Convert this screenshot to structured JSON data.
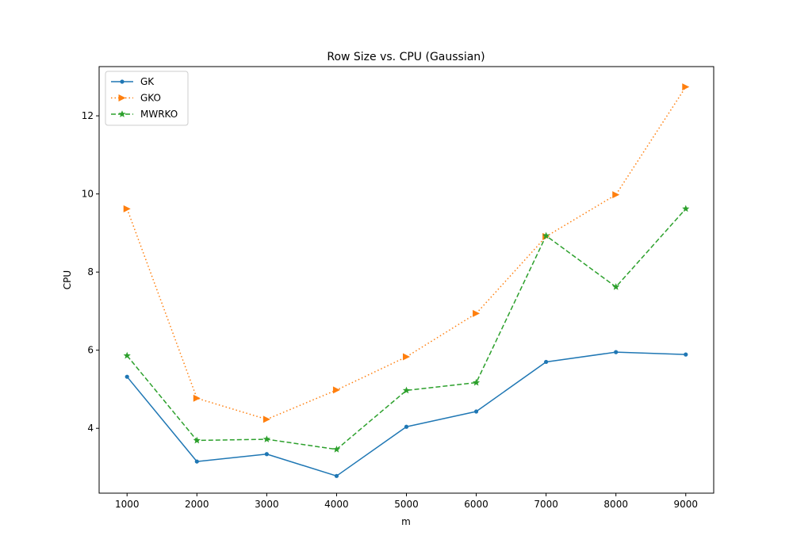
{
  "chart_data": {
    "type": "line",
    "title": "Row Size vs. CPU (Gaussian)",
    "xlabel": "m",
    "ylabel": "CPU",
    "x": [
      1000,
      2000,
      3000,
      4000,
      5000,
      6000,
      7000,
      8000,
      9000
    ],
    "x_ticks": [
      "1000",
      "2000",
      "3000",
      "4000",
      "5000",
      "6000",
      "7000",
      "8000",
      "9000"
    ],
    "y_ticks": [
      "4",
      "6",
      "8",
      "10",
      "12"
    ],
    "y_tick_values": [
      4,
      6,
      8,
      10,
      12
    ],
    "xlim": [
      600,
      9400
    ],
    "ylim": [
      2.34,
      13.26
    ],
    "grid": false,
    "legend_position": "top-left",
    "series": [
      {
        "name": "GK",
        "color": "#1f77b4",
        "dash": "solid",
        "marker": "point",
        "values": [
          5.32,
          3.15,
          3.34,
          2.78,
          4.04,
          4.43,
          5.7,
          5.95,
          5.89
        ]
      },
      {
        "name": "GKO",
        "color": "#ff7f0e",
        "dash": "dotted",
        "marker": "triangle-right",
        "values": [
          9.62,
          4.77,
          4.23,
          4.98,
          5.83,
          6.94,
          8.91,
          9.98,
          12.74
        ]
      },
      {
        "name": "MWRKO",
        "color": "#2ca02c",
        "dash": "dashed",
        "marker": "star",
        "values": [
          5.86,
          3.69,
          3.72,
          3.46,
          4.97,
          5.17,
          8.93,
          7.62,
          9.62
        ]
      }
    ]
  }
}
